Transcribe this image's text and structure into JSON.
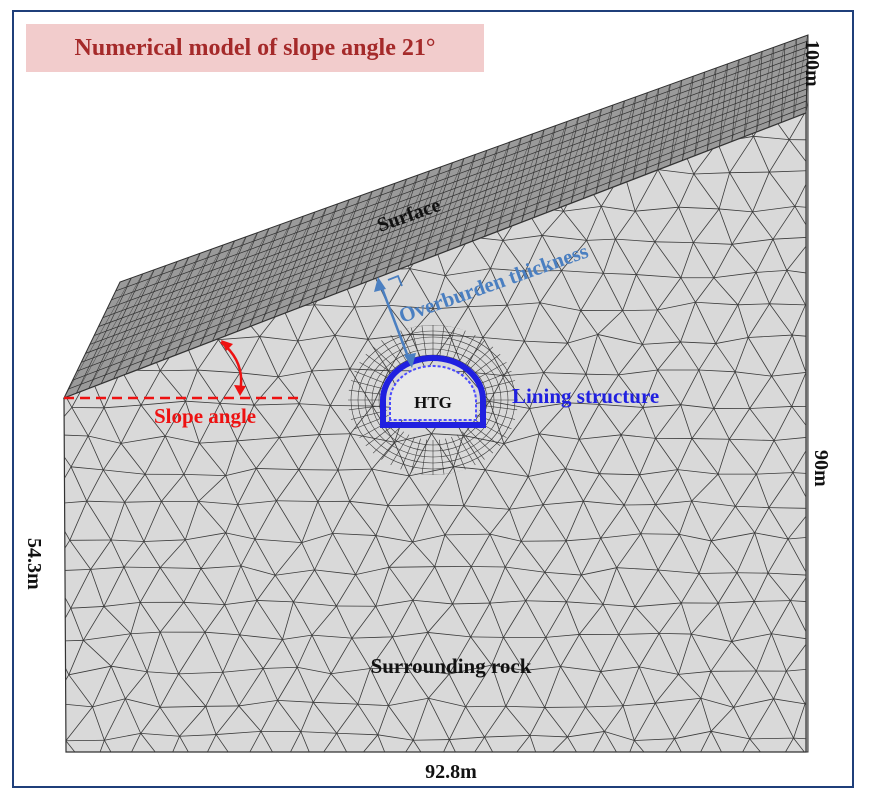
{
  "title": "Numerical model of slope angle 21°",
  "labels": {
    "surface": "Surface",
    "overburden": "Overburden thickness",
    "lining": "Lining structure",
    "slope_angle": "Slope angle",
    "htg": "HTG",
    "surrounding": "Surrounding rock"
  },
  "dimensions": {
    "depth": "100m",
    "right_height": "90m",
    "left_height": "54.3m",
    "bottom_width": "92.8m"
  },
  "colors": {
    "frame": "#1f3f7a",
    "title_bg": "#f2cccc",
    "title_text": "#a52a2a",
    "mesh_fill": "#d9d9d9",
    "mesh_line": "#3a3a3a",
    "slope_red": "#ee1111",
    "overburden_blue": "#4a7fc1",
    "lining_blue": "#2020e0"
  }
}
